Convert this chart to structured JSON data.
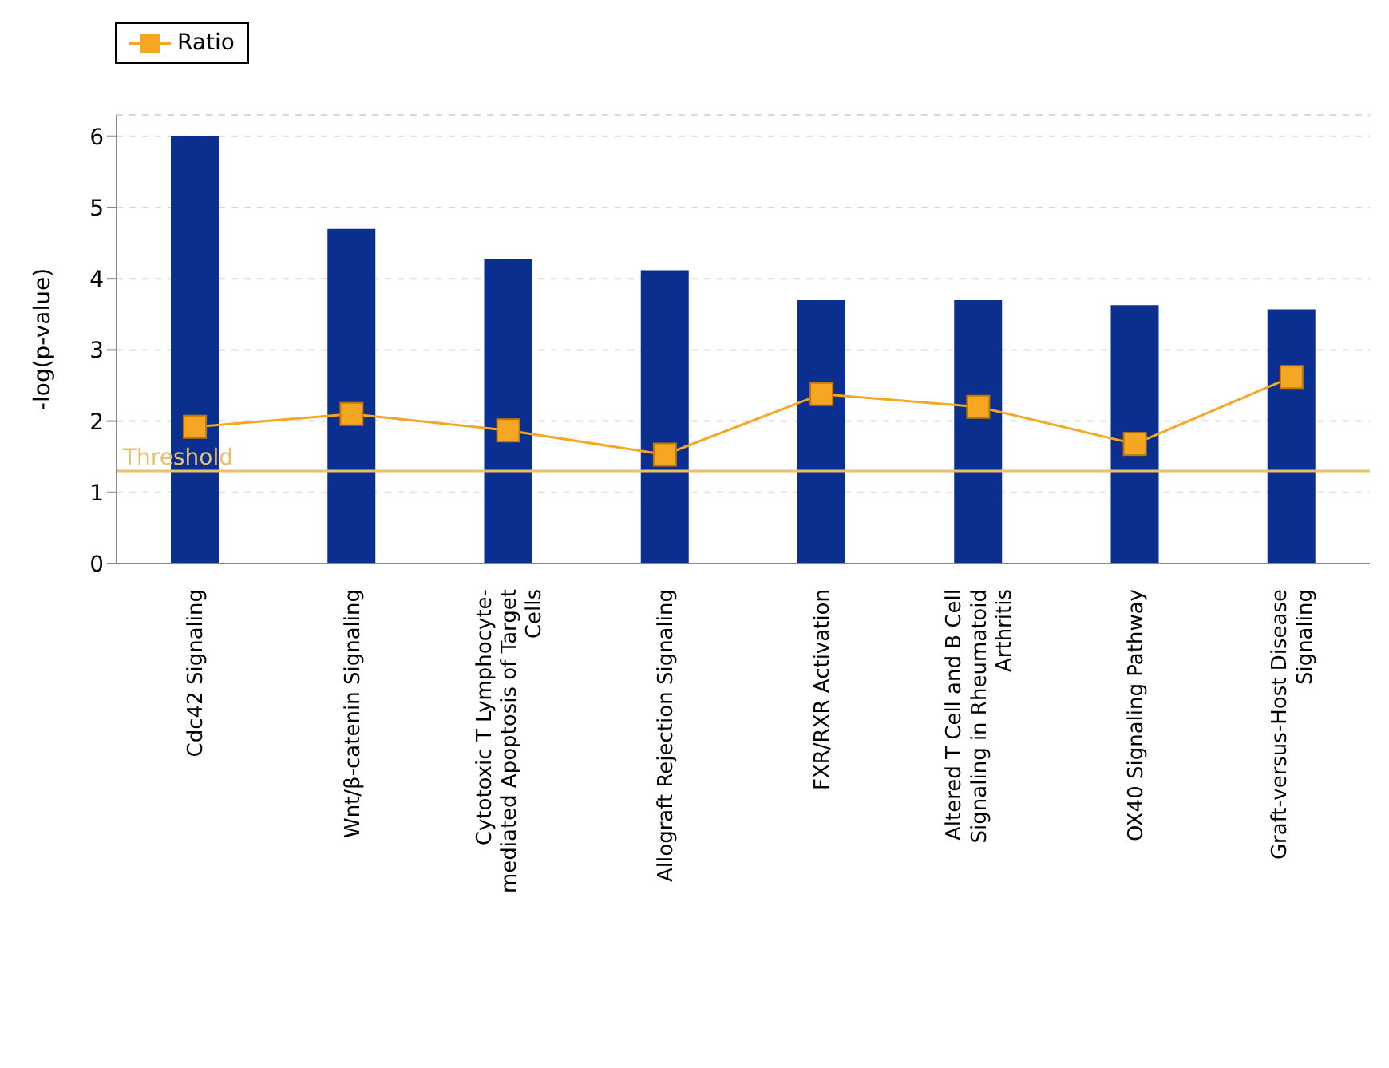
{
  "chart_data": {
    "type": "bar",
    "ylabel": "-log(p-value)",
    "categories": [
      "Cdc42 Signaling",
      "Wnt/β-catenin Signaling",
      "Cytotoxic T Lymphocyte-mediated Apoptosis of Target Cells",
      "Allograft Rejection Signaling",
      "FXR/RXR Activation",
      "Altered T Cell and B Cell Signaling in Rheumatoid Arthritis",
      "OX40 Signaling Pathway",
      "Graft-versus-Host Disease Signaling"
    ],
    "series": [
      {
        "color": "#0b2f8f",
        "values": [
          6.0,
          4.7,
          4.27,
          4.12,
          3.7,
          3.7,
          3.63,
          3.57
        ]
      },
      {
        "type": "line",
        "name": "Ratio",
        "color": "#f5a623",
        "values": [
          1.92,
          2.1,
          1.87,
          1.53,
          2.38,
          2.2,
          1.68,
          2.62
        ]
      }
    ],
    "ylim": [
      0,
      6.3
    ],
    "yticks": [
      0,
      1,
      2,
      3,
      4,
      5,
      6
    ],
    "grid": "y",
    "legend": "top left",
    "marker": "square",
    "ref_lines": [
      {
        "axis": "y",
        "value": 1.3,
        "label": "Threshold",
        "color": "#e8c070"
      }
    ]
  }
}
